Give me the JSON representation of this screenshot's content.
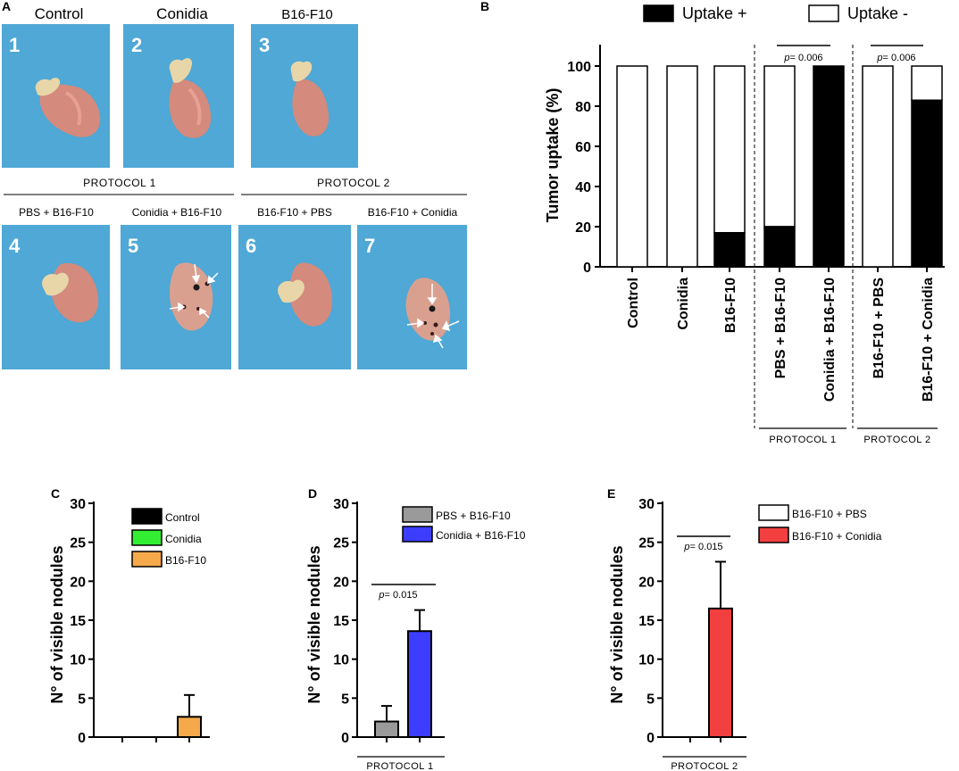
{
  "panel_a": {
    "letter": "A",
    "top_labels": [
      "Control",
      "Conidia",
      "B16-F10"
    ],
    "protocol1_header": "PROTOCOL 1",
    "protocol2_header": "PROTOCOL 2",
    "bottom_labels": [
      "PBS + B16-F10",
      "Conidia + B16-F10",
      "B16-F10 + PBS",
      "B16-F10 + Conidia"
    ],
    "photo_numbers": [
      "1",
      "2",
      "3",
      "4",
      "5",
      "6",
      "7"
    ],
    "colors": {
      "photo_background": "#4fa8d5",
      "liver": "#d58a7e"
    }
  },
  "chart_data": [
    {
      "id": "B",
      "letter": "B",
      "type": "bar",
      "stacked": true,
      "title": "",
      "ylabel": "Tumor uptake (%)",
      "xlabel": "",
      "ylim": [
        0,
        110
      ],
      "yticks": [
        "0",
        "20",
        "40",
        "60",
        "80",
        "100"
      ],
      "legend_position": "top",
      "categories": [
        "Control",
        "Conidia",
        "B16-F10",
        "PBS + B16-F10",
        "Conidia + B16-F10",
        "B16-F10 + PBS",
        "B16-F10 + Conidia"
      ],
      "series": [
        {
          "name": "Uptake +",
          "color": "#000000",
          "values": [
            0,
            0,
            17,
            20,
            100,
            0,
            83
          ]
        },
        {
          "name": "Uptake -",
          "color": "#ffffff",
          "values": [
            100,
            100,
            83,
            80,
            0,
            100,
            17
          ]
        }
      ],
      "annotations": [
        {
          "between": [
            "PBS + B16-F10",
            "Conidia + B16-F10"
          ],
          "p_label": "p",
          "p_value": "= 0.006"
        },
        {
          "between": [
            "B16-F10 + PBS",
            "B16-F10 + Conidia"
          ],
          "p_label": "p",
          "p_value": "= 0.006"
        }
      ],
      "group_labels": [
        "PROTOCOL 1",
        "PROTOCOL 2"
      ]
    },
    {
      "id": "C",
      "letter": "C",
      "type": "bar",
      "ylabel": "N° of visible nodules",
      "ylim": [
        0,
        30
      ],
      "yticks": [
        "0",
        "5",
        "10",
        "15",
        "20",
        "25",
        "30"
      ],
      "legend_position": "top-right",
      "categories": [
        "Control",
        "Conidia",
        "B16-F10"
      ],
      "values": [
        0,
        0,
        2.6
      ],
      "errors": [
        0,
        0,
        2.8
      ],
      "colors": [
        "#000000",
        "#33ee33",
        "#f5a94a"
      ]
    },
    {
      "id": "D",
      "letter": "D",
      "type": "bar",
      "ylabel": "N° of visible nodules",
      "ylim": [
        0,
        30
      ],
      "yticks": [
        "0",
        "5",
        "10",
        "15",
        "20",
        "25",
        "30"
      ],
      "legend_position": "top-right",
      "categories": [
        "PBS + B16-F10",
        "Conidia + B16-F10"
      ],
      "values": [
        2.0,
        13.6
      ],
      "errors": [
        2.0,
        2.7
      ],
      "colors": [
        "#9a9a9a",
        "#3d3dff"
      ],
      "annotations": [
        {
          "p_label": "p",
          "p_value": "= 0.015"
        }
      ],
      "group_label": "PROTOCOL 1"
    },
    {
      "id": "E",
      "letter": "E",
      "type": "bar",
      "ylabel": "N° of visible nodules",
      "ylim": [
        0,
        30
      ],
      "yticks": [
        "0",
        "5",
        "10",
        "15",
        "20",
        "25",
        "30"
      ],
      "legend_position": "top-right",
      "categories": [
        "B16-F10 + PBS",
        "B16-F10 + Conidia"
      ],
      "values": [
        0,
        16.5
      ],
      "errors": [
        0,
        6.0
      ],
      "colors": [
        "#ffffff",
        "#f24040"
      ],
      "annotations": [
        {
          "p_label": "p",
          "p_value": "= 0.015"
        }
      ],
      "group_label": "PROTOCOL 2"
    }
  ]
}
